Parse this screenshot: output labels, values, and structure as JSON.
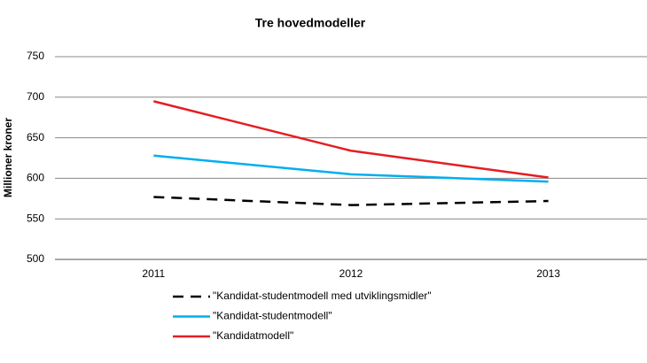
{
  "chart_data": {
    "type": "line",
    "title": "Tre hovedmodeller",
    "y_label": "Millioner kroner",
    "categories": [
      "2011",
      "2012",
      "2013"
    ],
    "series": [
      {
        "name": "\"Kandidat-studentmodell med utviklingsmidler\"",
        "color": "#000000",
        "dashed": true,
        "values": [
          577,
          567,
          572
        ]
      },
      {
        "name": "\"Kandidat-studentmodell\"",
        "color": "#00aeef",
        "dashed": false,
        "values": [
          628,
          605,
          596
        ]
      },
      {
        "name": "\"Kandidatmodell\"",
        "color": "#e31e24",
        "dashed": false,
        "values": [
          695,
          634,
          601
        ]
      }
    ],
    "ylim": [
      500,
      750
    ],
    "yticks": [
      500,
      550,
      600,
      650,
      700,
      750
    ],
    "grid": true
  }
}
